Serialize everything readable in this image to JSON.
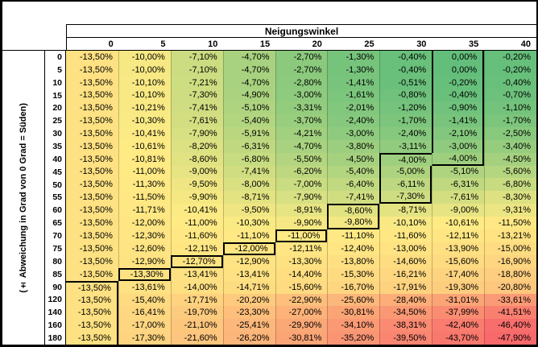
{
  "chart_data": {
    "type": "heatmap",
    "title": "Neigungswinkel",
    "row_axis_label": "(± Abweichung in Grad von 0 Grad = Süden)",
    "columns": [
      "0",
      "5",
      "10",
      "15",
      "20",
      "25",
      "30",
      "35",
      "40"
    ],
    "rows": [
      "0",
      "5",
      "10",
      "15",
      "20",
      "25",
      "30",
      "35",
      "40",
      "45",
      "50",
      "55",
      "60",
      "65",
      "70",
      "75",
      "80",
      "85",
      "90",
      "120",
      "140",
      "160",
      "180"
    ],
    "unit": "%",
    "values": [
      [
        -13.5,
        -10.0,
        -7.1,
        -4.7,
        -2.7,
        -1.3,
        -0.4,
        0.0,
        -0.2
      ],
      [
        -13.5,
        -10.0,
        -7.1,
        -4.7,
        -2.7,
        -1.3,
        -0.4,
        0.0,
        -0.2
      ],
      [
        -13.5,
        -10.1,
        -7.21,
        -4.7,
        -2.8,
        -1.41,
        -0.51,
        -0.2,
        -0.4
      ],
      [
        -13.5,
        -10.1,
        -7.3,
        -4.9,
        -3.0,
        -1.61,
        -0.8,
        -0.4,
        -0.7
      ],
      [
        -13.5,
        -10.21,
        -7.41,
        -5.1,
        -3.31,
        -2.01,
        -1.2,
        -0.9,
        -1.1
      ],
      [
        -13.5,
        -10.3,
        -7.61,
        -5.4,
        -3.7,
        -2.4,
        -1.7,
        -1.41,
        -1.7
      ],
      [
        -13.5,
        -10.41,
        -7.9,
        -5.91,
        -4.21,
        -3.0,
        -2.4,
        -2.1,
        -2.5
      ],
      [
        -13.5,
        -10.61,
        -8.2,
        -6.31,
        -4.7,
        -3.8,
        -3.11,
        -3.0,
        -3.4
      ],
      [
        -13.5,
        -10.81,
        -8.6,
        -6.8,
        -5.5,
        -4.5,
        -4.0,
        -4.0,
        -4.5
      ],
      [
        -13.5,
        -11.0,
        -9.0,
        -7.41,
        -6.2,
        -5.4,
        -5.0,
        -5.1,
        -5.6
      ],
      [
        -13.5,
        -11.3,
        -9.5,
        -8.0,
        -7.0,
        -6.4,
        -6.11,
        -6.31,
        -6.8
      ],
      [
        -13.5,
        -11.5,
        -9.9,
        -8.71,
        -7.9,
        -7.41,
        -7.3,
        -7.61,
        -8.3
      ],
      [
        -13.5,
        -11.71,
        -10.41,
        -9.5,
        -8.91,
        -8.6,
        -8.71,
        -9.0,
        -9.31
      ],
      [
        -13.5,
        -12.0,
        -11.0,
        -10.3,
        -9.9,
        -9.8,
        -10.1,
        -10.61,
        -11.5
      ],
      [
        -13.5,
        -12.3,
        -11.6,
        -11.1,
        -11.0,
        -11.1,
        -11.6,
        -12.11,
        -13.21
      ],
      [
        -13.5,
        -12.6,
        -12.11,
        -12.0,
        -12.11,
        -12.4,
        -13.0,
        -13.9,
        -15.0
      ],
      [
        -13.5,
        -12.9,
        -12.7,
        -12.9,
        -13.3,
        -13.8,
        -14.6,
        -15.6,
        -16.9
      ],
      [
        -13.5,
        -13.3,
        -13.41,
        -13.41,
        -14.4,
        -15.3,
        -16.21,
        -17.4,
        -18.8
      ],
      [
        -13.5,
        -13.61,
        -14.0,
        -14.71,
        -15.6,
        -16.7,
        -17.91,
        -19.3,
        -20.8
      ],
      [
        -13.5,
        -15.4,
        -17.71,
        -20.2,
        -22.9,
        -25.6,
        -28.4,
        -31.01,
        -33.61
      ],
      [
        -13.5,
        -16.41,
        -19.7,
        -23.3,
        -27.0,
        -30.81,
        -34.5,
        -37.99,
        -41.51
      ],
      [
        -13.5,
        -17.0,
        -21.1,
        -25.41,
        -29.9,
        -34.1,
        -38.31,
        -42.4,
        -46.4
      ],
      [
        -13.5,
        -17.3,
        -21.6,
        -26.2,
        -30.81,
        -35.2,
        -39.5,
        -43.7,
        -47.9
      ]
    ],
    "highlight_outline_band_cols": [
      [
        7,
        7
      ],
      [
        7,
        7
      ],
      [
        7,
        7
      ],
      [
        7,
        7
      ],
      [
        7,
        7
      ],
      [
        7,
        7
      ],
      [
        7,
        7
      ],
      [
        7,
        7
      ],
      [
        6,
        7
      ],
      [
        6,
        6
      ],
      [
        6,
        6
      ],
      [
        6,
        6
      ],
      [
        5,
        5
      ],
      [
        5,
        5
      ],
      [
        4,
        4
      ],
      [
        3,
        3
      ],
      [
        2,
        2
      ],
      [
        1,
        1
      ],
      [
        0,
        0
      ],
      [
        0,
        0
      ],
      [
        0,
        0
      ],
      [
        0,
        0
      ],
      [
        0,
        0
      ]
    ],
    "color_scale": {
      "min_color": "#F8696B",
      "mid_color": "#FFEB84",
      "max_color": "#63BE7B",
      "midpoint": "median",
      "outline_color": "#000000"
    },
    "value_range": [
      -47.9,
      0.0
    ]
  }
}
